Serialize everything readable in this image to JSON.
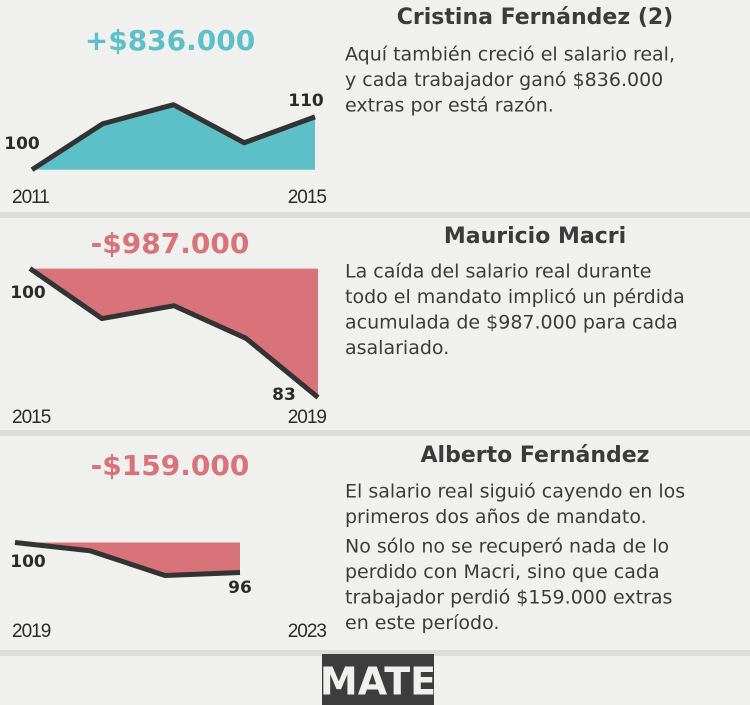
{
  "chart_data": [
    {
      "type": "area",
      "title": "Cristina Fernández (2)",
      "annotation": "+$836.000",
      "paragraphs": [
        [
          "Aquí también creció el salario real,",
          "y cada trabajador ganó $836.000",
          "extras por está razón."
        ]
      ],
      "x": [
        "2011",
        null,
        null,
        null,
        "2015"
      ],
      "values": [
        100,
        108.7,
        112.3,
        105.1,
        110
      ],
      "color": "#5dc0c9",
      "ylim": [
        99,
        113
      ]
    },
    {
      "type": "area",
      "title": "Mauricio Macri",
      "annotation": "-$987.000",
      "paragraphs": [
        [
          "La caída del salario real durante",
          "todo el mandato implicó un pérdida",
          "acumulada de $987.000 para cada",
          "asalariado."
        ]
      ],
      "x": [
        "2015",
        null,
        null,
        null,
        "2019"
      ],
      "values": [
        100,
        93.4,
        95.1,
        90.8,
        83
      ],
      "color": "#d9737a",
      "ylim": [
        82,
        101
      ]
    },
    {
      "type": "area",
      "title": "Alberto Fernández",
      "annotation": "-$159.000",
      "paragraphs": [
        [
          "El salario real siguió cayendo en los",
          "primeros dos años de mandato."
        ],
        [
          "No sólo no se recuperó nada de lo",
          "perdido con Macri, sino que cada",
          "trabajador perdió $159.000 extras",
          "en este período."
        ]
      ],
      "x": [
        "2019",
        null,
        null,
        null,
        "2023"
      ],
      "values": [
        100,
        98.9,
        95.6,
        96,
        null
      ],
      "color": "#d9737a",
      "ylim": [
        95,
        101
      ]
    }
  ],
  "logo": "MATE"
}
